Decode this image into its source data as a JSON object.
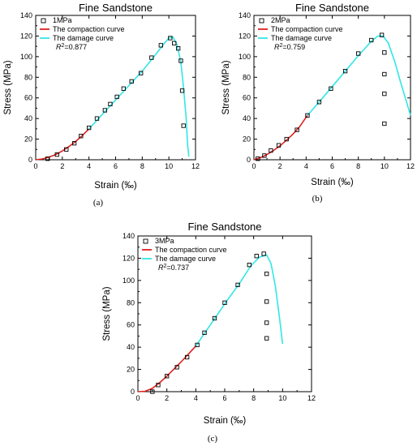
{
  "colors": {
    "compaction": "#e02020",
    "damage": "#33e6e6",
    "marker": "#000000",
    "axis": "#000000"
  },
  "chart_data": [
    {
      "type": "scatter",
      "caption": "(a)",
      "title": "Fine Sandstone",
      "xlabel": "Strain (‰)",
      "ylabel": "Stress (MPa)",
      "xlim": [
        0,
        12
      ],
      "ylim": [
        0,
        140
      ],
      "xticks": [
        "0",
        "2",
        "4",
        "6",
        "8",
        "10",
        "12"
      ],
      "yticks": [
        "0",
        "20",
        "40",
        "60",
        "80",
        "100",
        "120",
        "140"
      ],
      "legend": {
        "position": "top-left",
        "markers_label": "1MPa",
        "compaction_label": "The compaction curve",
        "damage_label": "The damage curve",
        "r2_prefix": "R",
        "r2_value": "=0.877"
      },
      "series": [
        {
          "name": "1MPa",
          "kind": "markers",
          "x": [
            0.9,
            1.6,
            2.3,
            2.9,
            3.4,
            4.0,
            4.6,
            5.2,
            5.6,
            6.1,
            6.6,
            7.2,
            7.9,
            8.7,
            9.4,
            10.1,
            10.4,
            10.7,
            10.9,
            11.0,
            11.1
          ],
          "y": [
            1,
            5,
            10,
            16,
            23,
            31,
            40,
            48,
            54,
            61,
            69,
            76,
            84,
            99,
            111,
            118,
            113,
            108,
            96,
            67,
            33
          ]
        },
        {
          "name": "The compaction curve",
          "kind": "line",
          "part": "compaction",
          "x": [
            0,
            0.5,
            1,
            1.5,
            2,
            2.5,
            3,
            3.5,
            4.0
          ],
          "y": [
            0,
            0.8,
            2.5,
            5,
            8.5,
            12.8,
            17.8,
            23.5,
            30
          ]
        },
        {
          "name": "The damage curve",
          "kind": "line",
          "part": "damage",
          "x": [
            4.0,
            5,
            6,
            7,
            8,
            9,
            9.6,
            10.0,
            10.3,
            10.6,
            10.9,
            11.1,
            11.3,
            11.4,
            11.5
          ],
          "y": [
            30,
            44,
            58,
            72,
            86,
            102,
            112,
            118,
            119,
            112,
            95,
            70,
            40,
            15,
            3
          ]
        }
      ]
    },
    {
      "type": "scatter",
      "caption": "(b)",
      "title": "Fine Sandstone",
      "xlabel": "Strain (‰)",
      "ylabel": "Stress (MPa)",
      "xlim": [
        0,
        12
      ],
      "ylim": [
        0,
        140
      ],
      "xticks": [
        "0",
        "2",
        "4",
        "6",
        "8",
        "10",
        "12"
      ],
      "yticks": [
        "0",
        "20",
        "40",
        "60",
        "80",
        "100",
        "120",
        "140"
      ],
      "legend": {
        "position": "top-left",
        "markers_label": "2MPa",
        "compaction_label": "The compaction curve",
        "damage_label": "The damage curve",
        "r2_prefix": "R",
        "r2_value": "=0.759"
      },
      "series": [
        {
          "name": "2MPa",
          "kind": "markers",
          "x": [
            0.3,
            0.8,
            1.3,
            1.9,
            2.5,
            3.3,
            4.1,
            5.0,
            5.9,
            7.0,
            8.0,
            9.0,
            9.8,
            10.0,
            10.0,
            10.0,
            10.0
          ],
          "y": [
            1,
            4,
            9,
            14,
            20,
            29,
            43,
            56,
            69,
            86,
            103,
            116,
            121,
            104,
            83,
            64,
            35
          ]
        },
        {
          "name": "The compaction curve",
          "kind": "line",
          "part": "compaction",
          "x": [
            0,
            0.5,
            1,
            1.5,
            2,
            2.5,
            3,
            3.5,
            4.1
          ],
          "y": [
            0,
            2,
            5,
            9,
            13.5,
            19,
            25,
            32,
            43
          ]
        },
        {
          "name": "The damage curve",
          "kind": "line",
          "part": "damage",
          "x": [
            4.1,
            5,
            6,
            7,
            8,
            9,
            9.5,
            9.9,
            10.3,
            10.8,
            11.2,
            11.6,
            12.0
          ],
          "y": [
            43,
            56,
            71,
            86,
            101,
            115,
            120,
            120,
            113,
            95,
            77,
            60,
            43
          ]
        }
      ]
    },
    {
      "type": "scatter",
      "caption": "(c)",
      "title": "Fine Sandstone",
      "xlabel": "Strain (‰)",
      "ylabel": "Stress (MPa)",
      "xlim": [
        0,
        12
      ],
      "ylim": [
        0,
        140
      ],
      "xticks": [
        "0",
        "2",
        "4",
        "6",
        "8",
        "10",
        "12"
      ],
      "yticks": [
        "0",
        "20",
        "40",
        "60",
        "80",
        "100",
        "120",
        "140"
      ],
      "legend": {
        "position": "top-left",
        "markers_label": "3MPa",
        "compaction_label": "The compaction curve",
        "damage_label": "The damage curve",
        "r2_prefix": "R",
        "r2_value": "=0.737"
      },
      "series": [
        {
          "name": "3MPa",
          "kind": "markers",
          "x": [
            1.0,
            1.4,
            2.0,
            2.7,
            3.4,
            4.1,
            4.6,
            5.3,
            6.0,
            6.9,
            7.7,
            8.2,
            8.7,
            8.9,
            8.9,
            8.9,
            8.9
          ],
          "y": [
            0,
            6,
            14,
            22,
            31,
            42,
            53,
            66,
            80,
            96,
            114,
            122,
            124,
            106,
            81,
            62,
            48
          ]
        },
        {
          "name": "The compaction curve",
          "kind": "line",
          "part": "compaction",
          "x": [
            0,
            0.5,
            1.0,
            1.5,
            2.0,
            2.5,
            3.0,
            3.5,
            4.0
          ],
          "y": [
            0,
            0.4,
            3,
            8,
            14,
            20.5,
            27,
            34,
            41
          ]
        },
        {
          "name": "The damage curve",
          "kind": "line",
          "part": "damage",
          "x": [
            4.0,
            5,
            6,
            7,
            7.8,
            8.4,
            8.9,
            9.2,
            9.5,
            9.8,
            10.0
          ],
          "y": [
            41,
            60,
            79,
            97,
            113,
            121,
            123,
            115,
            95,
            65,
            43
          ]
        }
      ]
    }
  ]
}
